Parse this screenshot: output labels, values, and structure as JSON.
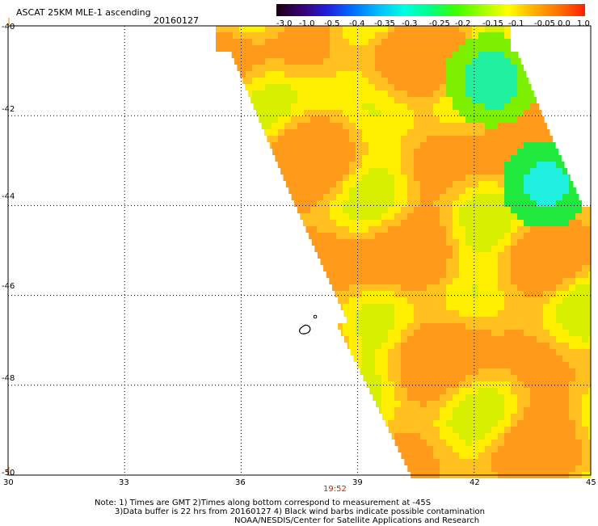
{
  "header": {
    "title": "ASCAT 25KM MLE-1 ascending",
    "date": "20160127"
  },
  "colorbar": {
    "labels": [
      "-3.0",
      "-1.0",
      "-0.5",
      "-0.4",
      "-0.35",
      "-0.3",
      "-0.25",
      "-0.2",
      "-0.15",
      "-0.1",
      "-0.05",
      "0.0",
      "1.0"
    ],
    "colors": [
      "#1a0010",
      "#3a0070",
      "#2020e0",
      "#0070ff",
      "#00c0ff",
      "#00ffe0",
      "#00ff80",
      "#40ff00",
      "#a0ff00",
      "#ffff00",
      "#ffb000",
      "#ff7000",
      "#ff2000"
    ]
  },
  "map": {
    "lat_labels": [
      "-40",
      "-42",
      "-44",
      "-46",
      "-48",
      "-50"
    ],
    "lon_labels": [
      "30",
      "33",
      "36",
      "39",
      "42",
      "45"
    ],
    "time_label": "19:52"
  },
  "swath_palette": {
    "orange": "#ff9a1a",
    "light_orange": "#ffc020",
    "yellow": "#ffee00",
    "yellow_green": "#d8f000",
    "green": "#7cf000",
    "bright_green": "#20e83c",
    "cyan_green": "#20f0a0",
    "cyan": "#20f0e0",
    "blue": "#1070ff",
    "red": "#ff3a10"
  },
  "notes": {
    "line1": "Note: 1) Times are GMT 2)Times along bottom correspond to measurement at -45S",
    "line2": "3)Data buffer is 22 hrs from 20160127 4) Black wind barbs indicate possible contamination",
    "line3": "NOAA/NESDIS/Center for Satellite Applications and Research"
  }
}
